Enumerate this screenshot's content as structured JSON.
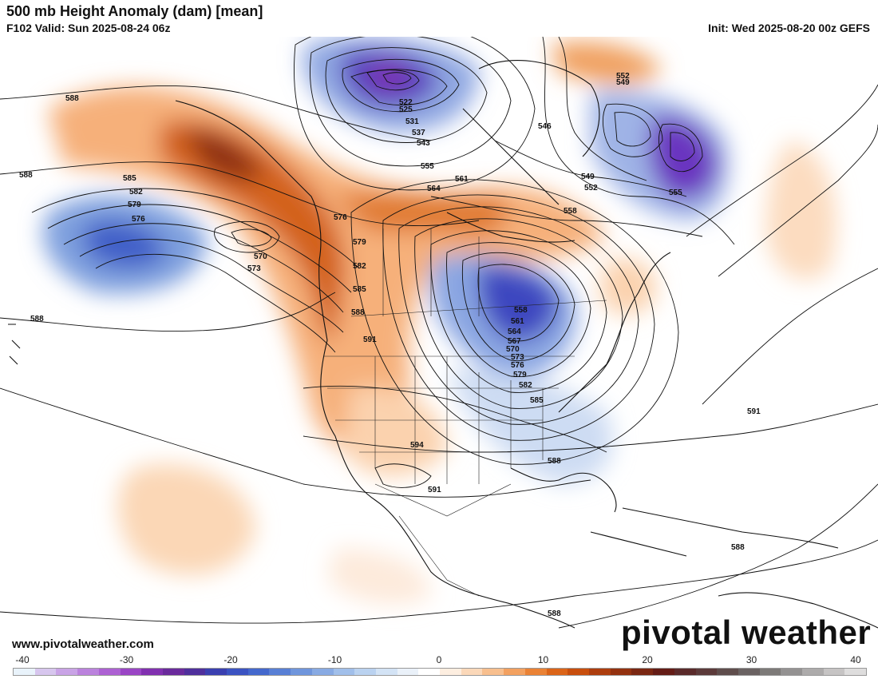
{
  "header": {
    "title": "500 mb Height Anomaly (dam) [mean]",
    "valid": "F102 Valid: Sun 2025-08-24 06z",
    "init": "Init: Wed 2025-08-20 00z GEFS"
  },
  "footer": {
    "site": "www.pivotalweather.com",
    "brand": "pivotal weather"
  },
  "colorbar": {
    "ticks": [
      "-40",
      "-30",
      "-20",
      "-10",
      "0",
      "10",
      "20",
      "30",
      "40"
    ],
    "colors": [
      "#e9f3fb",
      "#d7c6ee",
      "#c9a3e6",
      "#bb82dd",
      "#ad61d3",
      "#9a45c5",
      "#8130b0",
      "#6a2a9c",
      "#4f2f9c",
      "#3a3fb0",
      "#3b53c2",
      "#4468cd",
      "#587fd5",
      "#6f95dc",
      "#88aae3",
      "#a1bfea",
      "#bad2f0",
      "#d3e3f5",
      "#eaf1f9",
      "#ffffff",
      "#fdeee0",
      "#fbd8b9",
      "#f8bf8e",
      "#f3a160",
      "#ea8235",
      "#db6418",
      "#c84e0d",
      "#ad3d0e",
      "#93310f",
      "#7a2712",
      "#641c16",
      "#5a2a2a",
      "#5c3a3a",
      "#5f4d4c",
      "#6a6262",
      "#7d7a78",
      "#949292",
      "#adabab",
      "#c6c4c4",
      "#dedddd"
    ]
  },
  "contour_labels": [
    {
      "text": "588"
    },
    {
      "text": "588"
    },
    {
      "text": "588"
    },
    {
      "text": "585"
    },
    {
      "text": "582"
    },
    {
      "text": "579"
    },
    {
      "text": "576"
    },
    {
      "text": "570"
    },
    {
      "text": "573"
    },
    {
      "text": "576"
    },
    {
      "text": "579"
    },
    {
      "text": "582"
    },
    {
      "text": "585"
    },
    {
      "text": "588"
    },
    {
      "text": "591"
    },
    {
      "text": "594"
    },
    {
      "text": "591"
    },
    {
      "text": "522"
    },
    {
      "text": "525"
    },
    {
      "text": "531"
    },
    {
      "text": "537"
    },
    {
      "text": "543"
    },
    {
      "text": "555"
    },
    {
      "text": "564"
    },
    {
      "text": "561"
    },
    {
      "text": "558"
    },
    {
      "text": "546"
    },
    {
      "text": "552"
    },
    {
      "text": "549"
    },
    {
      "text": "549"
    },
    {
      "text": "552"
    },
    {
      "text": "555"
    },
    {
      "text": "558"
    },
    {
      "text": "561"
    },
    {
      "text": "564"
    },
    {
      "text": "567"
    },
    {
      "text": "570"
    },
    {
      "text": "573"
    },
    {
      "text": "576"
    },
    {
      "text": "579"
    },
    {
      "text": "582"
    },
    {
      "text": "585"
    },
    {
      "text": "588"
    },
    {
      "text": "591"
    },
    {
      "text": "588"
    },
    {
      "text": "588"
    }
  ]
}
